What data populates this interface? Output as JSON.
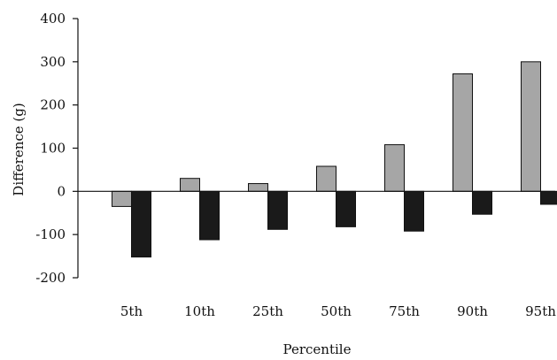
{
  "chart_data": {
    "type": "bar",
    "title": "",
    "xlabel": "Percentile",
    "ylabel": "Difference (g)",
    "ylim": [
      -200,
      400
    ],
    "yticks": [
      -200,
      -100,
      0,
      100,
      200,
      300,
      400
    ],
    "categories": [
      "5th",
      "10th",
      "25th",
      "50th",
      "75th",
      "90th",
      "95th"
    ],
    "series": [
      {
        "values": [
          -35,
          30,
          18,
          58,
          108,
          272,
          300
        ],
        "color": "#a6a6a6"
      },
      {
        "values": [
          -152,
          -112,
          -88,
          -82,
          -92,
          -53,
          -30
        ],
        "color": "#1a1a1a"
      }
    ],
    "grid": false,
    "legend": "none"
  }
}
